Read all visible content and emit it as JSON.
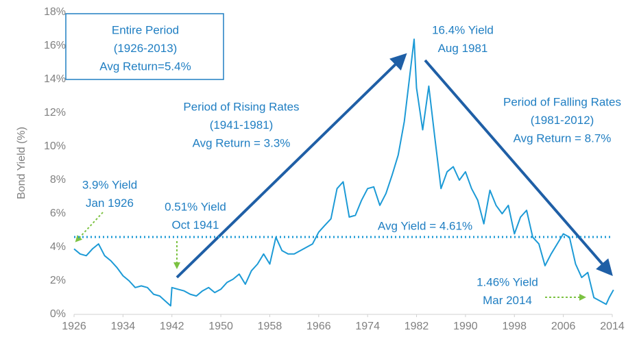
{
  "chart_data": {
    "type": "line",
    "y_label": "Bond Yield (%)",
    "color": "#1c9ad6",
    "x": [
      1926,
      1927,
      1928,
      1929,
      1930,
      1931,
      1932,
      1933,
      1934,
      1935,
      1936,
      1937,
      1938,
      1939,
      1940,
      1941.8,
      1942,
      1943,
      1944,
      1945,
      1946,
      1947,
      1948,
      1949,
      1950,
      1951,
      1952,
      1953,
      1954,
      1955,
      1956,
      1957,
      1958,
      1959,
      1960,
      1961,
      1962,
      1963,
      1964,
      1965,
      1966,
      1967,
      1968,
      1969,
      1970,
      1971,
      1972,
      1973,
      1974,
      1975,
      1976,
      1977,
      1978,
      1979,
      1980,
      1981.6,
      1982,
      1983,
      1984,
      1985,
      1986,
      1987,
      1988,
      1989,
      1990,
      1991,
      1992,
      1993,
      1994,
      1995,
      1996,
      1997,
      1998,
      1999,
      2000,
      2001,
      2002,
      2003,
      2004,
      2005,
      2006,
      2007,
      2008,
      2009,
      2010,
      2011,
      2012,
      2013,
      2013.5,
      2014.2
    ],
    "values": [
      3.9,
      3.6,
      3.5,
      3.9,
      4.2,
      3.5,
      3.2,
      2.8,
      2.3,
      2.0,
      1.6,
      1.7,
      1.6,
      1.2,
      1.1,
      0.51,
      1.6,
      1.5,
      1.4,
      1.2,
      1.1,
      1.4,
      1.6,
      1.3,
      1.5,
      1.9,
      2.1,
      2.4,
      1.8,
      2.6,
      3.0,
      3.6,
      3.0,
      4.6,
      3.8,
      3.6,
      3.6,
      3.8,
      4.0,
      4.2,
      4.9,
      5.3,
      5.7,
      7.5,
      7.9,
      5.8,
      5.9,
      6.8,
      7.5,
      7.6,
      6.5,
      7.2,
      8.3,
      9.5,
      11.5,
      16.4,
      13.5,
      11.0,
      13.6,
      10.5,
      7.5,
      8.5,
      8.8,
      8.0,
      8.5,
      7.5,
      6.8,
      5.4,
      7.4,
      6.5,
      6.0,
      6.5,
      4.8,
      5.8,
      6.2,
      4.6,
      4.2,
      2.9,
      3.6,
      4.2,
      4.8,
      4.6,
      3.0,
      2.2,
      2.5,
      1.0,
      0.8,
      0.6,
      1.0,
      1.46
    ],
    "xlim": [
      1926,
      2014
    ],
    "xticks": [
      1926,
      1934,
      1942,
      1950,
      1958,
      1966,
      1974,
      1982,
      1990,
      1998,
      2006,
      2014
    ],
    "ylim": [
      0,
      18
    ],
    "yticks": [
      {
        "value": 0,
        "label": "0%"
      },
      {
        "value": 2,
        "label": "2%"
      },
      {
        "value": 4,
        "label": "4%"
      },
      {
        "value": 6,
        "label": "6%"
      },
      {
        "value": 8,
        "label": "8%"
      },
      {
        "value": 10,
        "label": "10%"
      },
      {
        "value": 12,
        "label": "12%"
      },
      {
        "value": 14,
        "label": "14%"
      },
      {
        "value": 16,
        "label": "16%"
      },
      {
        "value": 18,
        "label": "18%"
      }
    ],
    "avg_yield": {
      "value": 4.61,
      "label": "Avg Yield = 4.61%",
      "color": "#1c9ad6"
    },
    "annotations": [
      {
        "text": [
          "Entire Period",
          "(1926-2013)",
          "Avg Return=5.4%"
        ]
      },
      {
        "text": [
          "16.4% Yield",
          "Aug 1981"
        ]
      },
      {
        "text": [
          "Period of Rising Rates",
          "(1941-1981)",
          "Avg Return = 3.3%"
        ]
      },
      {
        "text": [
          "Period of Falling Rates",
          "(1981-2012)",
          "Avg Return = 8.7%"
        ]
      },
      {
        "text": [
          "3.9% Yield",
          "Jan 1926"
        ]
      },
      {
        "text": [
          "0.51% Yield",
          "Oct 1941"
        ]
      },
      {
        "text": [
          "1.46% Yield",
          "Mar 2014"
        ]
      }
    ]
  }
}
